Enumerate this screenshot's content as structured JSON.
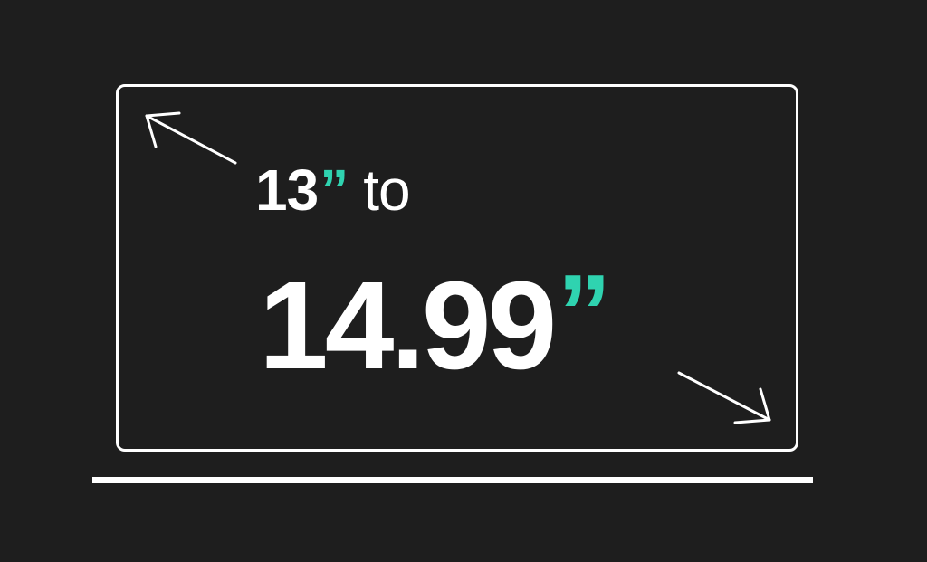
{
  "size_range": {
    "min_value": "13",
    "min_unit": "”",
    "connector": "to",
    "max_value": "14.99",
    "max_unit": "”"
  },
  "colors": {
    "background": "#1e1e1e",
    "foreground": "#ffffff",
    "accent": "#2fd3b0"
  },
  "icons": {
    "outline": "laptop-outline-icon",
    "arrow_top_left": "arrow-up-left-icon",
    "arrow_bottom_right": "arrow-down-right-icon"
  }
}
